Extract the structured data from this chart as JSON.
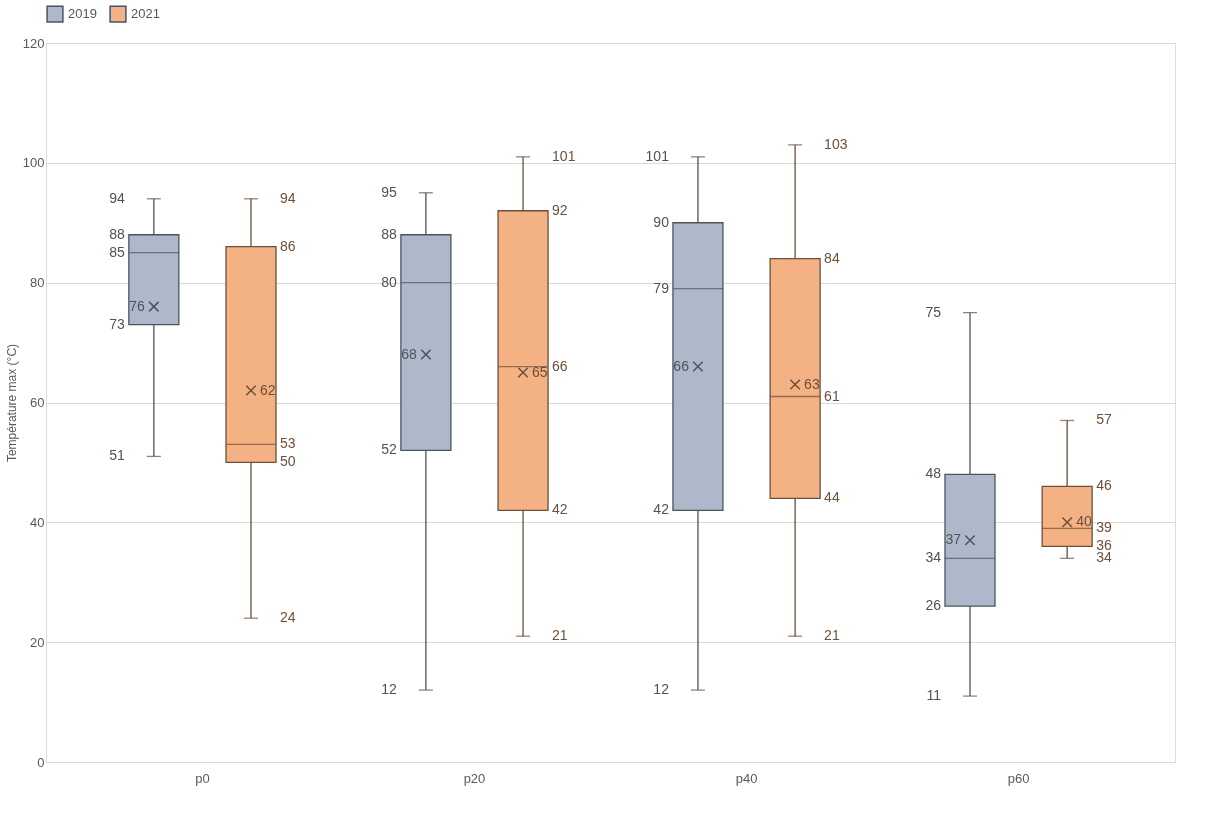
{
  "chart_data": {
    "type": "box",
    "ylabel": "Température max (°C)",
    "categories": [
      "p0",
      "p20",
      "p40",
      "p60"
    ],
    "series": [
      {
        "name": "2019",
        "color": "#adb9ca",
        "boxes": [
          {
            "low": 51,
            "q1": 73,
            "median": 85,
            "q3": 88,
            "high": 94,
            "mean": 76
          },
          {
            "low": 12,
            "q1": 52,
            "median": 80,
            "q3": 88,
            "high": 95,
            "mean": 68
          },
          {
            "low": 12,
            "q1": 42,
            "median": 79,
            "q3": 90,
            "high": 101,
            "mean": 66
          },
          {
            "low": 11,
            "q1": 26,
            "median": 34,
            "q3": 48,
            "high": 75,
            "mean": 37
          }
        ]
      },
      {
        "name": "2021",
        "color": "#f4b183",
        "boxes": [
          {
            "low": 24,
            "q1": 50,
            "median": 53,
            "q3": 86,
            "high": 94,
            "mean": 62
          },
          {
            "low": 21,
            "q1": 42,
            "median": 66,
            "q3": 92,
            "high": 101,
            "mean": 65
          },
          {
            "low": 21,
            "q1": 44,
            "median": 61,
            "q3": 84,
            "high": 103,
            "mean": 63
          },
          {
            "low": 34,
            "q1": 36,
            "median": 39,
            "q3": 46,
            "high": 57,
            "mean": 40
          }
        ]
      }
    ],
    "annotations": [
      "51",
      "73",
      "85",
      "88",
      "94",
      "76",
      "12",
      "52",
      "80",
      "88",
      "95",
      "68",
      "12",
      "42",
      "79",
      "90",
      "101",
      "66",
      "11",
      "26",
      "34",
      "48",
      "75",
      "37",
      "24",
      "50",
      "53",
      "86",
      "94",
      "62",
      "21",
      "42",
      "66",
      "92",
      "101",
      "65",
      "21",
      "44",
      "61",
      "84",
      "103",
      "63",
      "34",
      "36",
      "39",
      "46",
      "57",
      "40"
    ],
    "ylim": [
      0,
      120
    ],
    "yticks": [
      0,
      20,
      40,
      60,
      80,
      100,
      120
    ],
    "grid": "y",
    "legend": "top"
  }
}
